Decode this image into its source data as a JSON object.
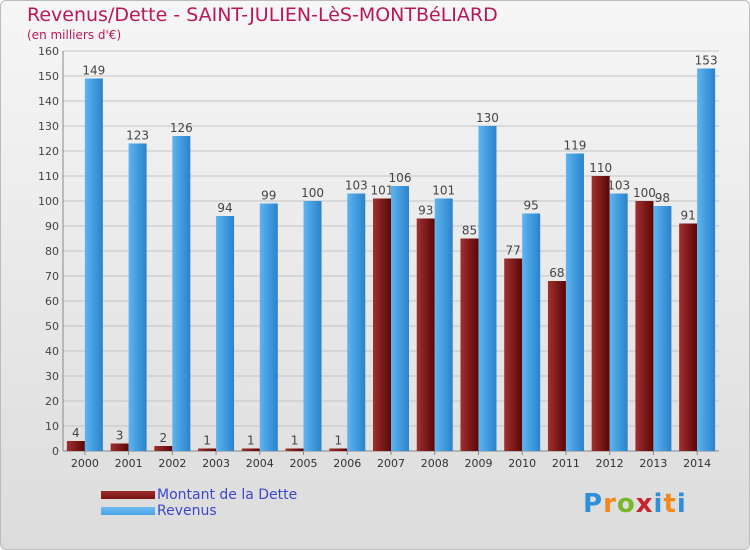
{
  "chart_data": {
    "type": "bar",
    "title": "Revenus/Dette - SAINT-JULIEN-LèS-MONTBéLIARD",
    "subtitle": "(en milliers d'€)",
    "categories": [
      "2000",
      "2001",
      "2002",
      "2003",
      "2004",
      "2005",
      "2006",
      "2007",
      "2008",
      "2009",
      "2010",
      "2011",
      "2012",
      "2013",
      "2014"
    ],
    "series": [
      {
        "name": "Montant de la Dette",
        "color": "#7a1414",
        "values": [
          4,
          3,
          2,
          1,
          1,
          1,
          1,
          101,
          93,
          85,
          77,
          68,
          110,
          100,
          91
        ]
      },
      {
        "name": "Revenus",
        "color": "#4aa3e6",
        "values": [
          149,
          123,
          126,
          94,
          99,
          100,
          103,
          106,
          101,
          130,
          95,
          119,
          103,
          98,
          153
        ]
      }
    ],
    "yticks": [
      0,
      10,
      20,
      30,
      40,
      50,
      60,
      70,
      80,
      90,
      100,
      110,
      120,
      130,
      140,
      150,
      160
    ],
    "ylim": [
      0,
      160
    ],
    "grid": true,
    "legend_position": "bottom-left"
  },
  "brand": {
    "label": "Proxiti"
  }
}
